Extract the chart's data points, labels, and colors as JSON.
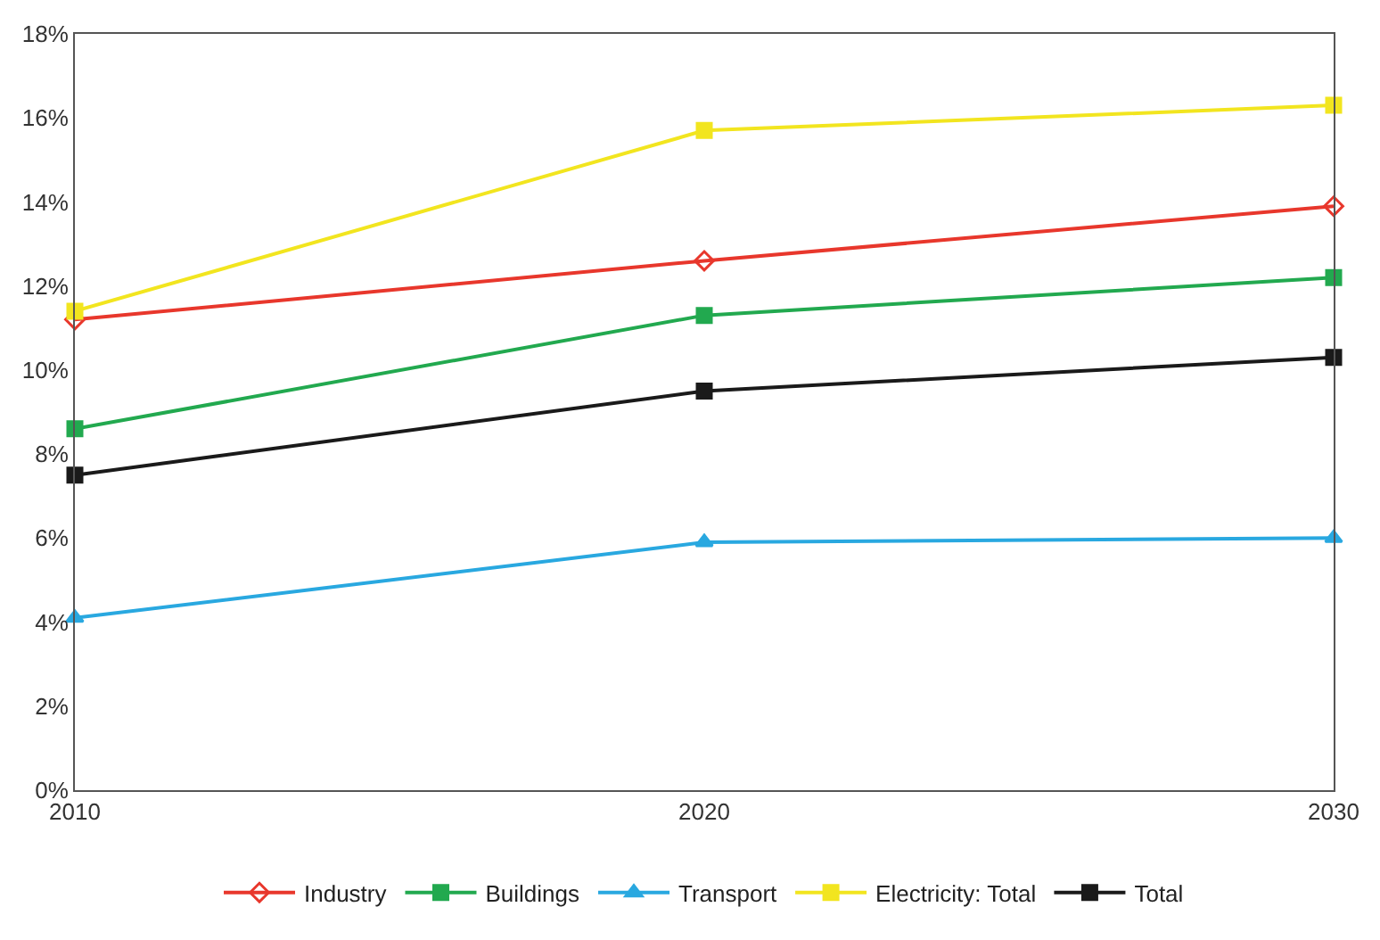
{
  "chart_data": {
    "type": "line",
    "x": [
      2010,
      2020,
      2030
    ],
    "xlim": [
      2010,
      2030
    ],
    "xticks": [
      2010,
      2020,
      2030
    ],
    "ylim": [
      0,
      18
    ],
    "yticks": [
      {
        "value": 0,
        "label": "0%"
      },
      {
        "value": 2,
        "label": "2%"
      },
      {
        "value": 4,
        "label": "4%"
      },
      {
        "value": 6,
        "label": "6%"
      },
      {
        "value": 8,
        "label": "8%"
      },
      {
        "value": 10,
        "label": "10%"
      },
      {
        "value": 12,
        "label": "12%"
      },
      {
        "value": 14,
        "label": "14%"
      },
      {
        "value": 16,
        "label": "16%"
      },
      {
        "value": 18,
        "label": "18%"
      }
    ],
    "legend": "bottom",
    "line_style": "solid",
    "series": [
      {
        "name": "Industry",
        "color": "#e8372c",
        "marker": "diamond",
        "values": [
          11.2,
          12.6,
          13.9
        ]
      },
      {
        "name": "Buildings",
        "color": "#22a94f",
        "marker": "square",
        "values": [
          8.6,
          11.3,
          12.2
        ]
      },
      {
        "name": "Transport",
        "color": "#29a8e0",
        "marker": "triangle",
        "values": [
          4.1,
          5.9,
          6.0
        ]
      },
      {
        "name": "Electricity: Total",
        "color": "#f2e51f",
        "marker": "square",
        "values": [
          11.4,
          15.7,
          16.3
        ]
      },
      {
        "name": "Total",
        "color": "#1a1a1a",
        "marker": "square",
        "values": [
          7.5,
          9.5,
          10.3
        ]
      }
    ]
  }
}
